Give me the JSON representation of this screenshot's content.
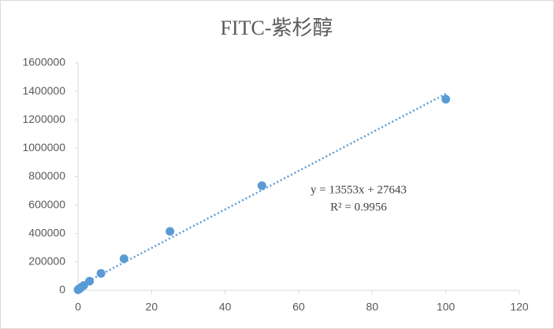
{
  "chart_data": {
    "type": "scatter",
    "title": "FITC-紫杉醇",
    "x": [
      0,
      0.195,
      0.39,
      0.78,
      1.5625,
      3.125,
      6.25,
      12.5,
      25,
      50,
      100
    ],
    "values": [
      5000,
      8000,
      12000,
      20000,
      35000,
      65000,
      120000,
      223000,
      415000,
      737000,
      1345000
    ],
    "color": "#5b9bd5",
    "xlim": [
      0,
      120
    ],
    "xticks": [
      0,
      20,
      40,
      60,
      80,
      100,
      120
    ],
    "ylim": [
      0,
      1600000
    ],
    "yticks": [
      0,
      200000,
      400000,
      600000,
      800000,
      1000000,
      1200000,
      1400000,
      1600000
    ],
    "grid": false,
    "trendline": {
      "slope": 13553,
      "intercept": 27643,
      "equation": "y = 13553x + 27643",
      "r2": "R² = 0.9956"
    }
  }
}
